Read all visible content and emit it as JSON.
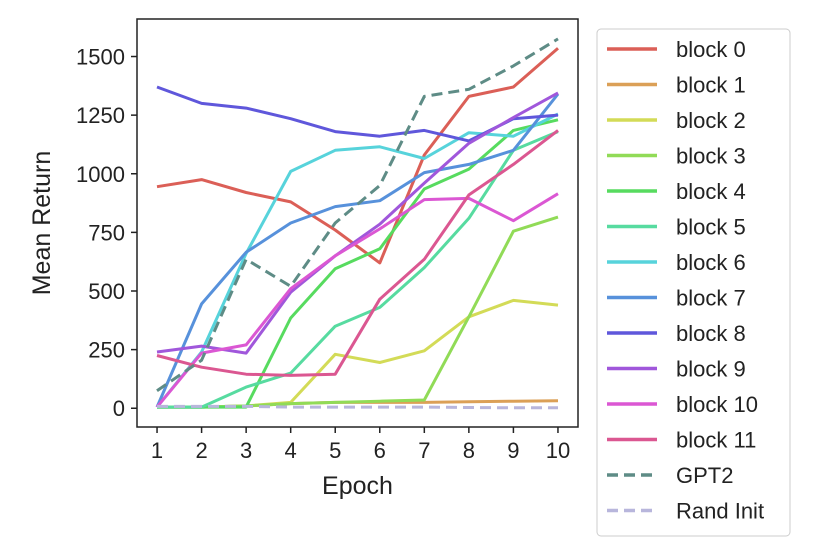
{
  "chart_data": {
    "type": "line",
    "xlabel": "Epoch",
    "ylabel": "Mean Return",
    "xlim": [
      0.55,
      10.45
    ],
    "ylim": [
      -80,
      1660
    ],
    "xticks": [
      1,
      2,
      3,
      4,
      5,
      6,
      7,
      8,
      9,
      10
    ],
    "yticks": [
      0,
      250,
      500,
      750,
      1000,
      1250,
      1500
    ],
    "x": [
      1,
      2,
      3,
      4,
      5,
      6,
      7,
      8,
      9,
      10
    ],
    "grid": false,
    "legend_position": "outside-right",
    "series": [
      {
        "name": "block 0",
        "color": "#db5f57",
        "dash": "solid",
        "values": [
          945,
          975,
          920,
          880,
          760,
          620,
          1080,
          1330,
          1370,
          1535
        ]
      },
      {
        "name": "block 1",
        "color": "#dba057",
        "dash": "solid",
        "values": [
          5,
          5,
          10,
          20,
          25,
          25,
          25,
          28,
          30,
          32
        ]
      },
      {
        "name": "block 2",
        "color": "#d3db57",
        "dash": "solid",
        "values": [
          5,
          5,
          10,
          25,
          230,
          195,
          245,
          390,
          460,
          440
        ]
      },
      {
        "name": "block 3",
        "color": "#91db57",
        "dash": "solid",
        "values": [
          5,
          5,
          10,
          20,
          25,
          30,
          35,
          390,
          755,
          815
        ]
      },
      {
        "name": "block 4",
        "color": "#57db5f",
        "dash": "solid",
        "values": [
          5,
          5,
          5,
          385,
          595,
          680,
          935,
          1020,
          1185,
          1230
        ]
      },
      {
        "name": "block 5",
        "color": "#57dba0",
        "dash": "solid",
        "values": [
          5,
          5,
          90,
          150,
          350,
          430,
          600,
          810,
          1100,
          1180
        ]
      },
      {
        "name": "block 6",
        "color": "#57d3db",
        "dash": "solid",
        "values": [
          5,
          240,
          660,
          1010,
          1100,
          1115,
          1065,
          1175,
          1160,
          1255
        ]
      },
      {
        "name": "block 7",
        "color": "#5791db",
        "dash": "solid",
        "values": [
          5,
          445,
          665,
          790,
          860,
          885,
          1005,
          1040,
          1100,
          1340
        ]
      },
      {
        "name": "block 8",
        "color": "#5f57db",
        "dash": "solid",
        "values": [
          1370,
          1300,
          1280,
          1235,
          1180,
          1160,
          1185,
          1140,
          1235,
          1250
        ]
      },
      {
        "name": "block 9",
        "color": "#a057db",
        "dash": "solid",
        "values": [
          240,
          265,
          235,
          495,
          650,
          785,
          960,
          1130,
          1240,
          1345
        ]
      },
      {
        "name": "block 10",
        "color": "#db57d3",
        "dash": "solid",
        "values": [
          5,
          235,
          270,
          510,
          650,
          765,
          890,
          895,
          800,
          915
        ]
      },
      {
        "name": "block 11",
        "color": "#db5791",
        "dash": "solid",
        "values": [
          225,
          175,
          145,
          140,
          145,
          465,
          635,
          910,
          1040,
          1185
        ]
      },
      {
        "name": "GPT2",
        "color": "#5e8c86",
        "dash": "dashed",
        "values": [
          75,
          205,
          635,
          520,
          790,
          950,
          1330,
          1360,
          1460,
          1575
        ]
      },
      {
        "name": "Rand Init",
        "color": "#b8b6dc",
        "dash": "dashed",
        "values": [
          8,
          8,
          8,
          5,
          5,
          5,
          5,
          3,
          2,
          2
        ]
      }
    ]
  }
}
